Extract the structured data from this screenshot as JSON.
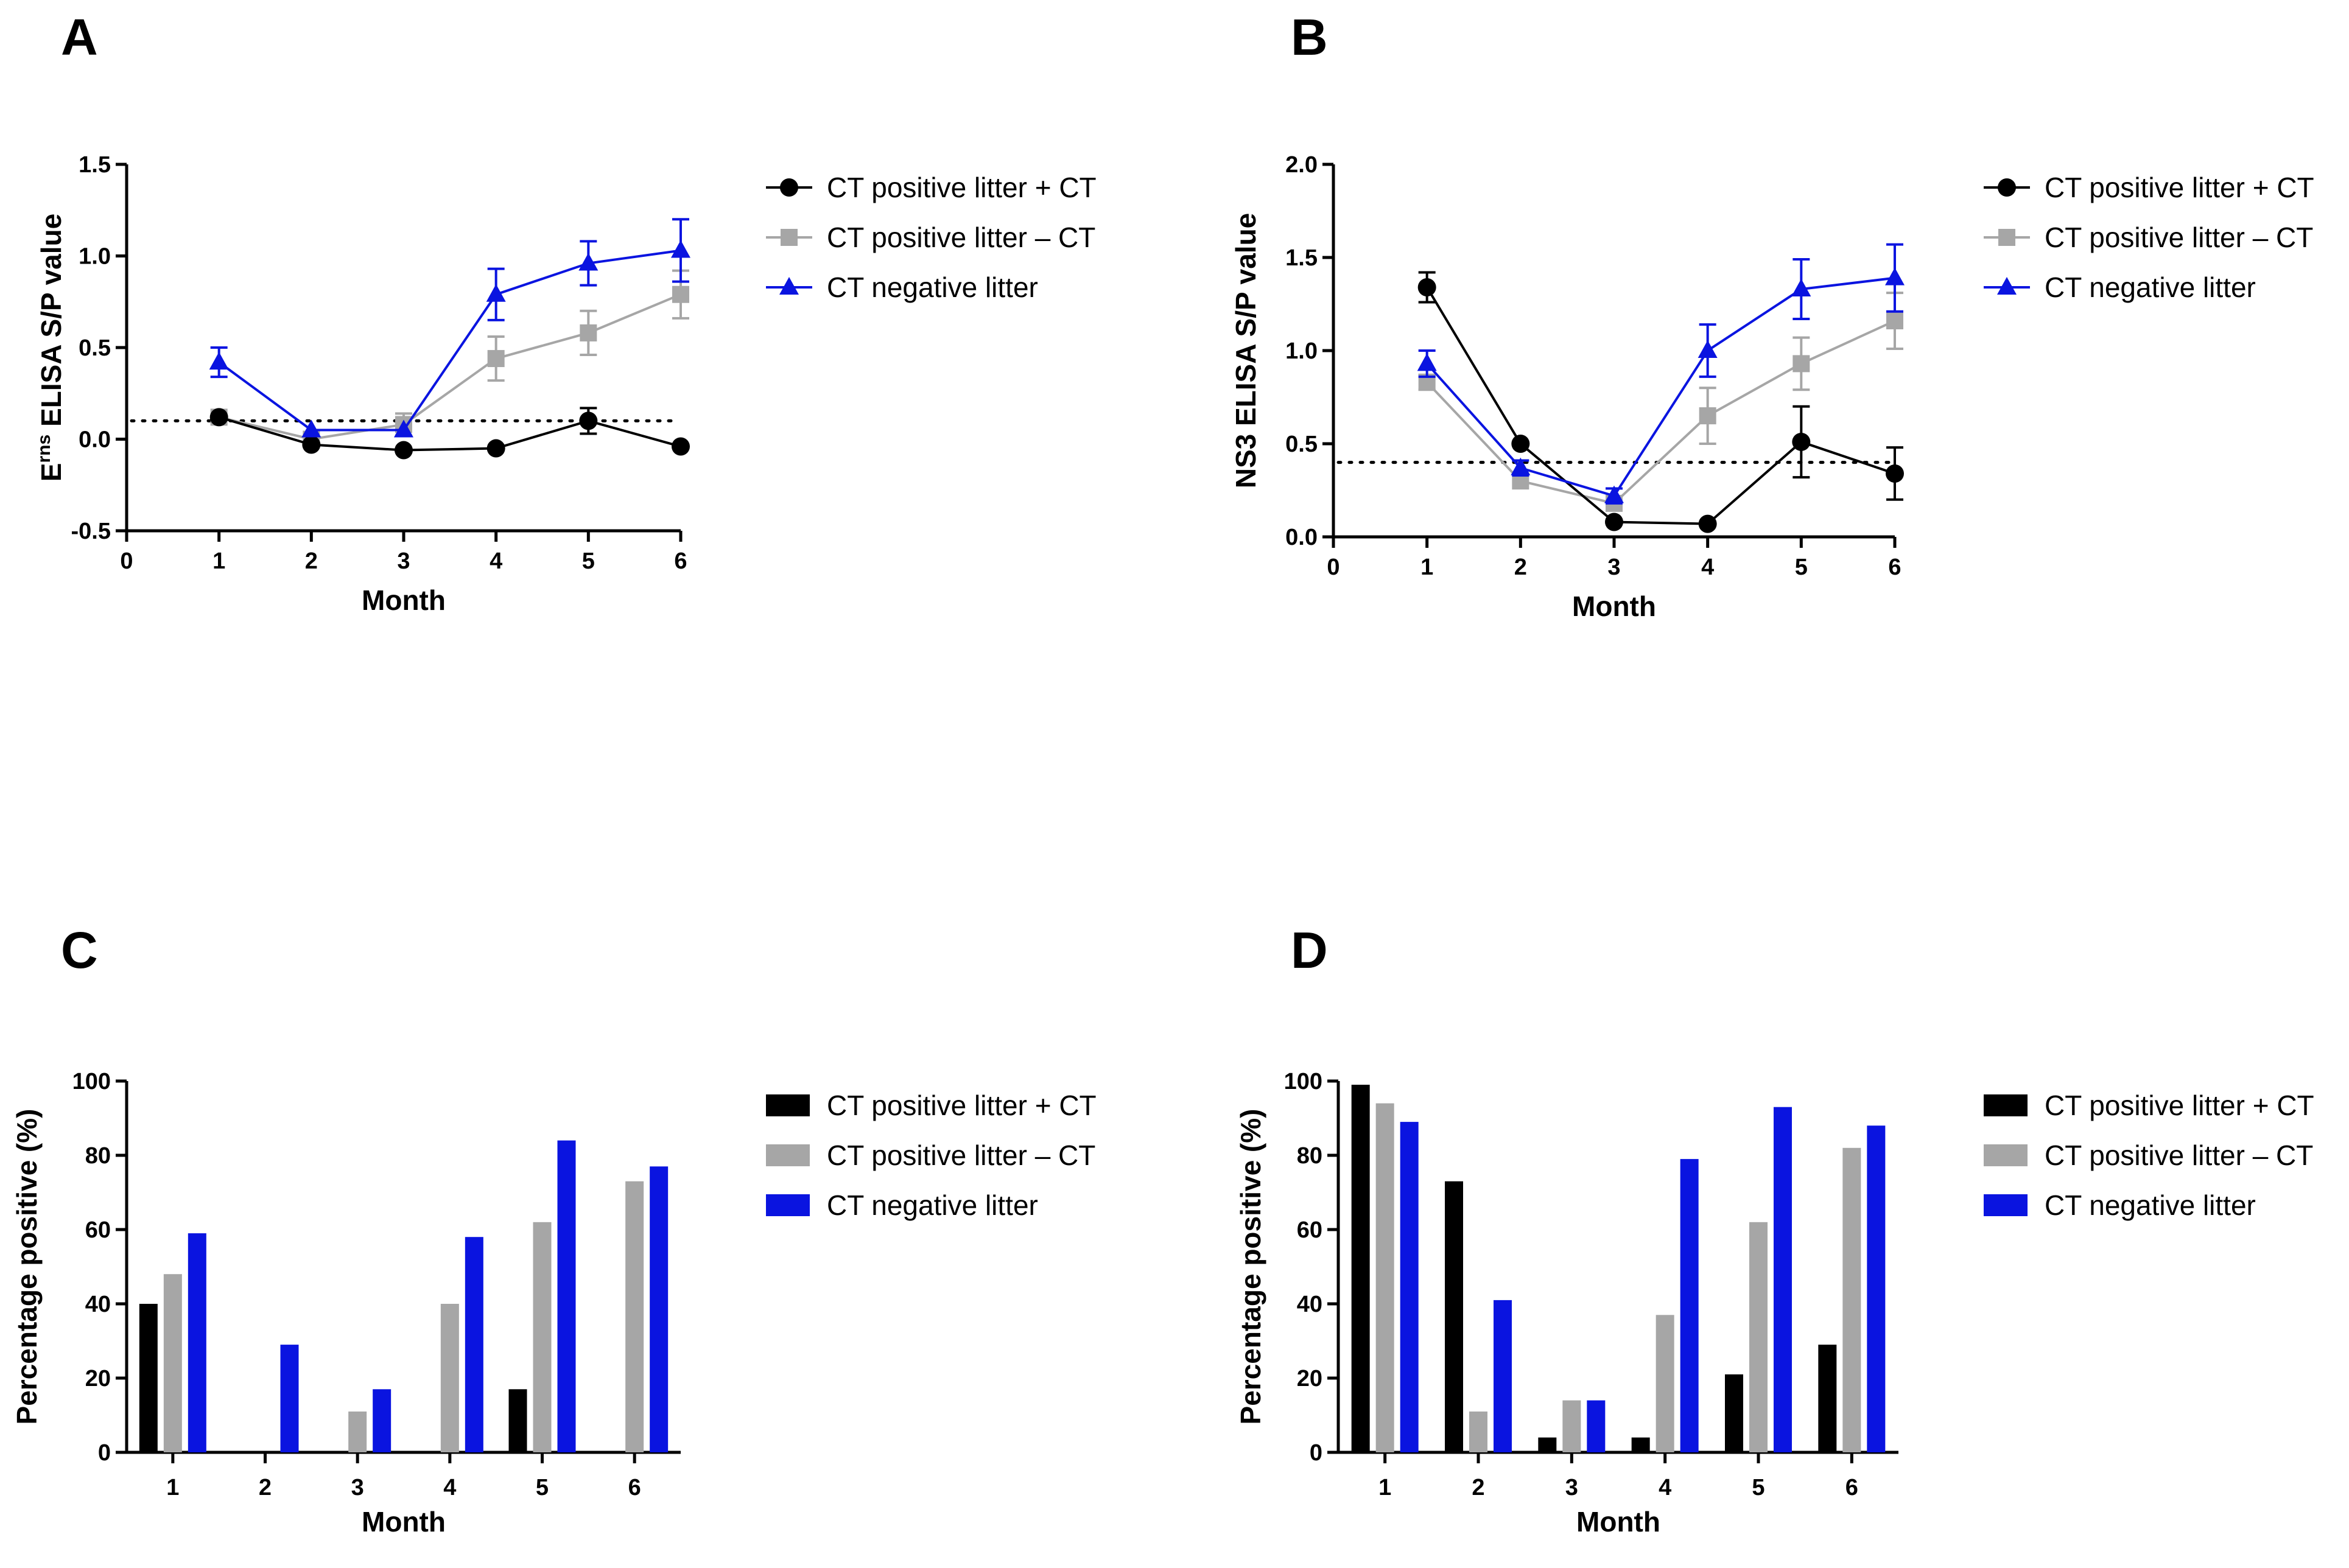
{
  "colors": {
    "black": "#000000",
    "gray": "#a6a6a6",
    "blue": "#0a14e0"
  },
  "legend": {
    "series": [
      {
        "name": "CT positive litter + CT",
        "color": "#000000",
        "marker": "circle"
      },
      {
        "name": "CT positive litter – CT",
        "color": "#a6a6a6",
        "marker": "square"
      },
      {
        "name": "CT negative litter",
        "color": "#0a14e0",
        "marker": "triangle"
      }
    ]
  },
  "chart_data": [
    {
      "panel": "A",
      "type": "line",
      "xlabel": "Month",
      "ylabel_main": "E",
      "ylabel_sup": "rns",
      "ylabel_rest": " ELISA S/P value",
      "xlim": [
        0,
        6
      ],
      "ylim": [
        -0.5,
        1.5
      ],
      "xticks": [
        "0",
        "1",
        "2",
        "3",
        "4",
        "5",
        "6"
      ],
      "yticks": [
        "-0.5",
        "0.0",
        "0.5",
        "1.0",
        "1.5"
      ],
      "cutoff": 0.1,
      "x": [
        1,
        2,
        3,
        4,
        5,
        6
      ],
      "series": [
        {
          "name": "CT positive litter + CT",
          "values": [
            0.12,
            -0.03,
            -0.06,
            -0.05,
            0.1,
            -0.04
          ],
          "err": [
            0,
            0,
            0,
            0,
            0.07,
            0
          ]
        },
        {
          "name": "CT positive litter – CT",
          "values": [
            0.12,
            0.0,
            0.08,
            0.44,
            0.58,
            0.79
          ],
          "err": [
            0,
            0,
            0.06,
            0.12,
            0.12,
            0.13
          ]
        },
        {
          "name": "CT negative litter",
          "values": [
            0.42,
            0.05,
            0.05,
            0.79,
            0.96,
            1.03
          ],
          "err": [
            0.08,
            0,
            0,
            0.14,
            0.12,
            0.17
          ]
        }
      ]
    },
    {
      "panel": "B",
      "type": "line",
      "xlabel": "Month",
      "ylabel_main": "NS3 ELISA S/P value",
      "xlim": [
        0,
        6
      ],
      "ylim": [
        0,
        2
      ],
      "xticks": [
        "0",
        "1",
        "2",
        "3",
        "4",
        "5",
        "6"
      ],
      "yticks": [
        "0.0",
        "0.5",
        "1.0",
        "1.5",
        "2.0"
      ],
      "cutoff": 0.4,
      "x": [
        1,
        2,
        3,
        4,
        5,
        6
      ],
      "series": [
        {
          "name": "CT positive litter + CT",
          "values": [
            1.34,
            0.5,
            0.08,
            0.07,
            0.51,
            0.34
          ],
          "err": [
            0.08,
            0,
            0,
            0,
            0.19,
            0.14
          ]
        },
        {
          "name": "CT positive litter – CT",
          "values": [
            0.83,
            0.3,
            0.18,
            0.65,
            0.93,
            1.16
          ],
          "err": [
            0.04,
            0,
            0.03,
            0.15,
            0.14,
            0.15
          ]
        },
        {
          "name": "CT negative litter",
          "values": [
            0.93,
            0.37,
            0.22,
            1.0,
            1.33,
            1.39
          ],
          "err": [
            0.07,
            0.04,
            0.04,
            0.14,
            0.16,
            0.18
          ]
        }
      ]
    },
    {
      "panel": "C",
      "type": "bar",
      "xlabel": "Month",
      "ylabel_main": "Percentage positive (%)",
      "ylim": [
        0,
        100
      ],
      "categories": [
        "1",
        "2",
        "3",
        "4",
        "5",
        "6"
      ],
      "yticks": [
        "0",
        "20",
        "40",
        "60",
        "80",
        "100"
      ],
      "series": [
        {
          "name": "CT positive litter + CT",
          "values": [
            40,
            0,
            0,
            0,
            17,
            0
          ]
        },
        {
          "name": "CT positive litter – CT",
          "values": [
            48,
            0,
            11,
            40,
            62,
            73
          ]
        },
        {
          "name": "CT negative litter",
          "values": [
            59,
            29,
            17,
            58,
            84,
            77
          ]
        }
      ]
    },
    {
      "panel": "D",
      "type": "bar",
      "xlabel": "Month",
      "ylabel_main": "Percentage positive (%)",
      "ylim": [
        0,
        100
      ],
      "categories": [
        "1",
        "2",
        "3",
        "4",
        "5",
        "6"
      ],
      "yticks": [
        "0",
        "20",
        "40",
        "60",
        "80",
        "100"
      ],
      "series": [
        {
          "name": "CT positive litter + CT",
          "values": [
            99,
            73,
            4,
            4,
            21,
            29
          ]
        },
        {
          "name": "CT positive litter – CT",
          "values": [
            94,
            11,
            14,
            37,
            62,
            82
          ]
        },
        {
          "name": "CT negative litter",
          "values": [
            89,
            41,
            14,
            79,
            93,
            88
          ]
        }
      ]
    }
  ]
}
